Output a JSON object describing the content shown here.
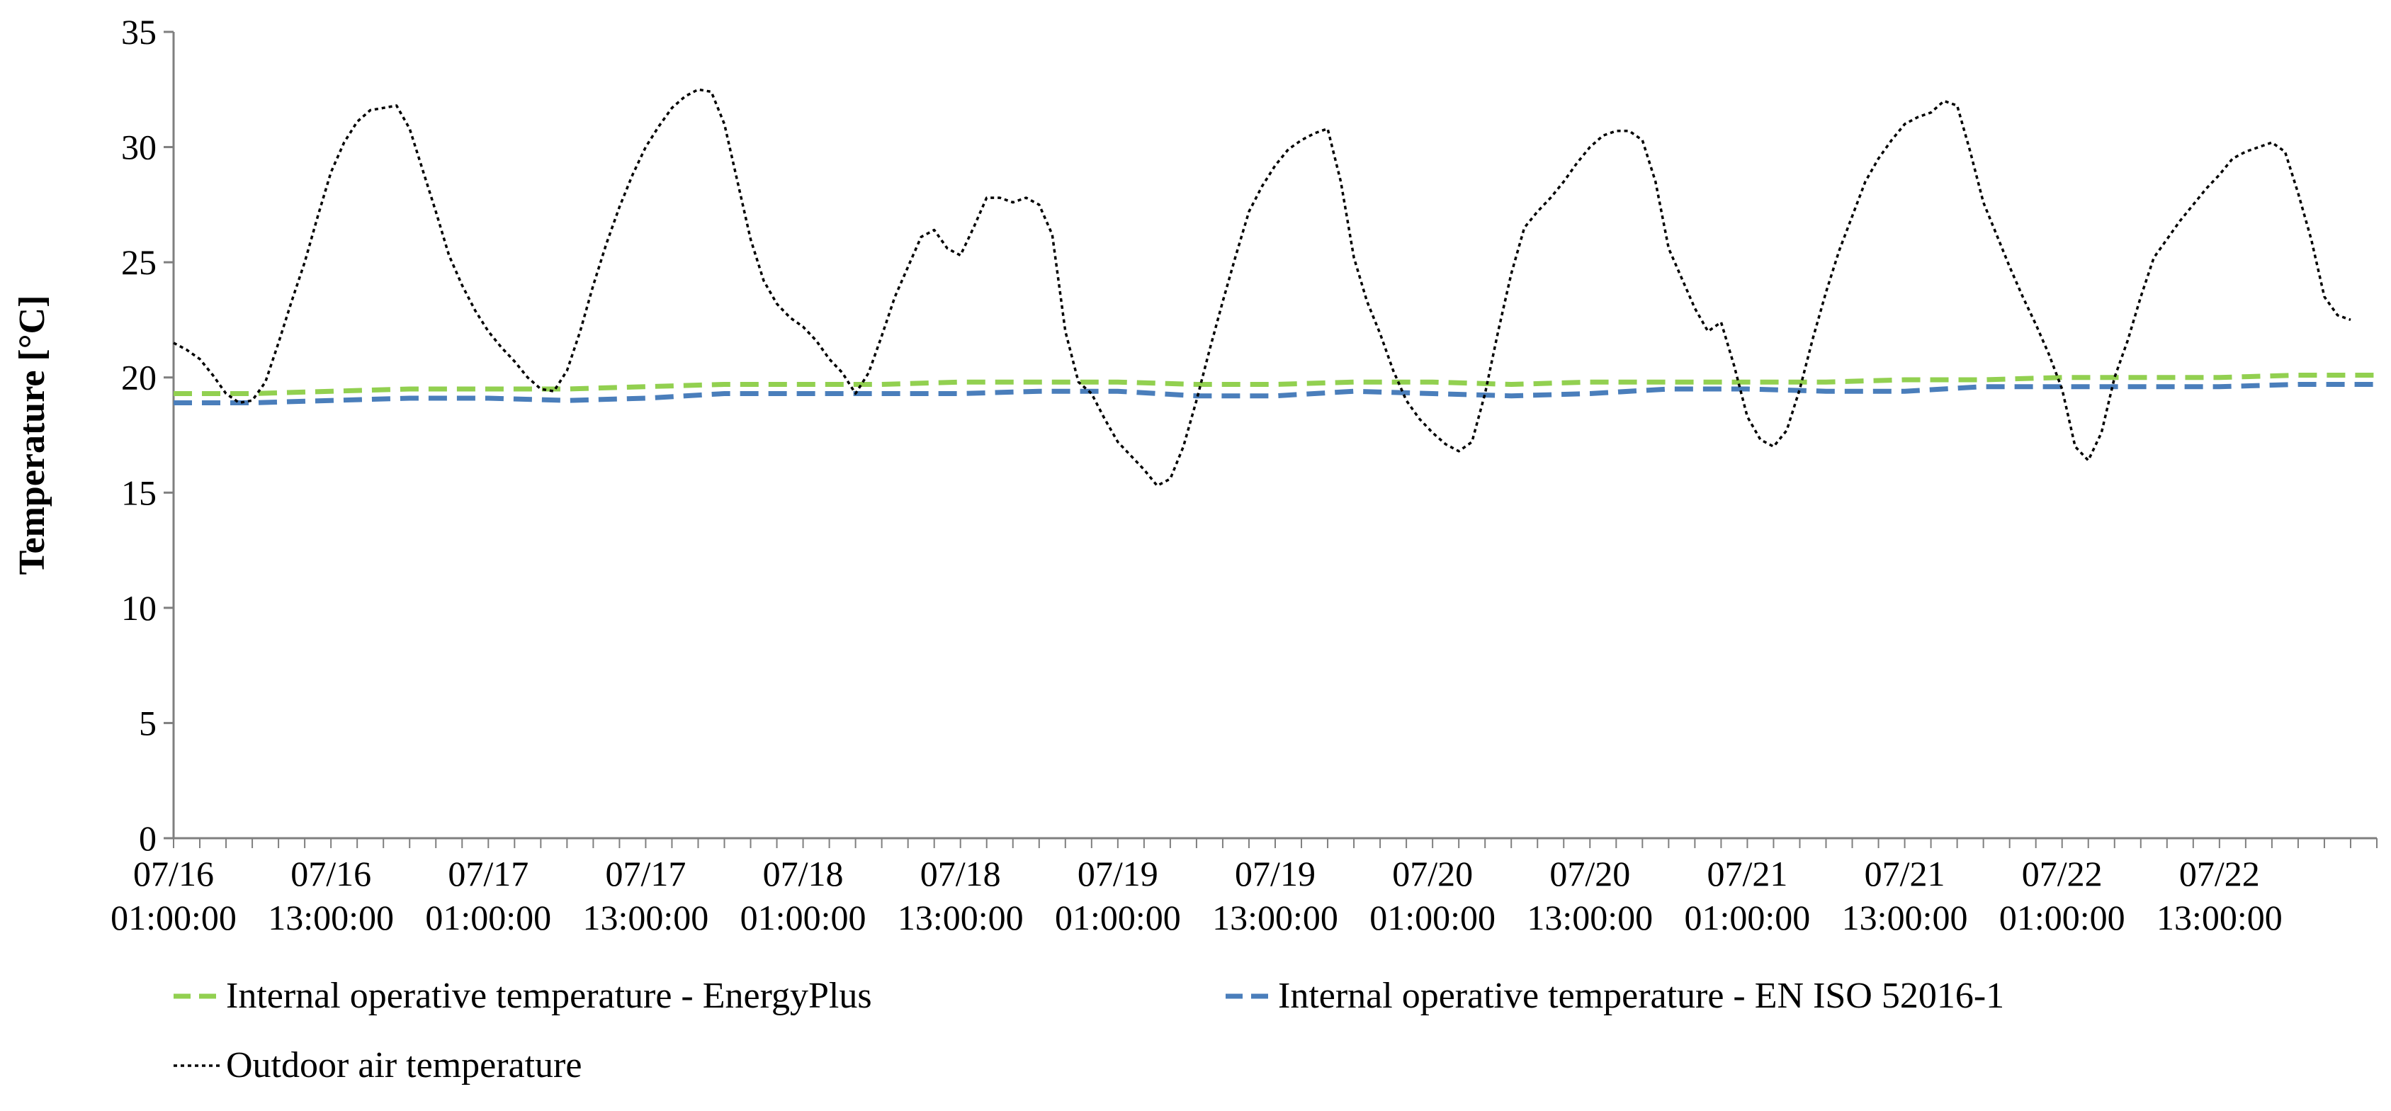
{
  "chart_data": {
    "type": "line",
    "title": "",
    "xlabel": "",
    "ylabel": "Temperature [°C]",
    "ylim": [
      0,
      35
    ],
    "yticks": [
      0,
      5,
      10,
      15,
      20,
      25,
      30,
      35
    ],
    "grid": false,
    "legend_position": "bottom",
    "x_unit": "hours since 07/16 01:00:00",
    "x_range": [
      0,
      168
    ],
    "x_tick_labels": [
      {
        "date": "07/16",
        "time": "01:00:00",
        "hour": 0
      },
      {
        "date": "07/16",
        "time": "13:00:00",
        "hour": 12
      },
      {
        "date": "07/17",
        "time": "01:00:00",
        "hour": 24
      },
      {
        "date": "07/17",
        "time": "13:00:00",
        "hour": 36
      },
      {
        "date": "07/18",
        "time": "01:00:00",
        "hour": 48
      },
      {
        "date": "07/18",
        "time": "13:00:00",
        "hour": 60
      },
      {
        "date": "07/19",
        "time": "01:00:00",
        "hour": 72
      },
      {
        "date": "07/19",
        "time": "13:00:00",
        "hour": 84
      },
      {
        "date": "07/20",
        "time": "01:00:00",
        "hour": 96
      },
      {
        "date": "07/20",
        "time": "13:00:00",
        "hour": 108
      },
      {
        "date": "07/21",
        "time": "01:00:00",
        "hour": 120
      },
      {
        "date": "07/21",
        "time": "13:00:00",
        "hour": 132
      },
      {
        "date": "07/22",
        "time": "01:00:00",
        "hour": 144
      },
      {
        "date": "07/22",
        "time": "13:00:00",
        "hour": 156
      }
    ],
    "series": [
      {
        "name": "Internal operative temperature - EnergyPlus",
        "color": "#92d050",
        "style": "dashed",
        "points": [
          [
            0,
            19.3
          ],
          [
            6,
            19.3
          ],
          [
            12,
            19.4
          ],
          [
            18,
            19.5
          ],
          [
            24,
            19.5
          ],
          [
            30,
            19.5
          ],
          [
            36,
            19.6
          ],
          [
            42,
            19.7
          ],
          [
            48,
            19.7
          ],
          [
            54,
            19.7
          ],
          [
            60,
            19.8
          ],
          [
            66,
            19.8
          ],
          [
            72,
            19.8
          ],
          [
            78,
            19.7
          ],
          [
            84,
            19.7
          ],
          [
            90,
            19.8
          ],
          [
            96,
            19.8
          ],
          [
            102,
            19.7
          ],
          [
            108,
            19.8
          ],
          [
            114,
            19.8
          ],
          [
            120,
            19.8
          ],
          [
            126,
            19.8
          ],
          [
            132,
            19.9
          ],
          [
            138,
            19.9
          ],
          [
            144,
            20.0
          ],
          [
            150,
            20.0
          ],
          [
            156,
            20.0
          ],
          [
            162,
            20.1
          ],
          [
            168,
            20.1
          ]
        ]
      },
      {
        "name": "Internal operative temperature - EN ISO 52016-1",
        "color": "#4a7ebb",
        "style": "dashed",
        "points": [
          [
            0,
            18.9
          ],
          [
            6,
            18.9
          ],
          [
            12,
            19.0
          ],
          [
            18,
            19.1
          ],
          [
            24,
            19.1
          ],
          [
            30,
            19.0
          ],
          [
            36,
            19.1
          ],
          [
            42,
            19.3
          ],
          [
            48,
            19.3
          ],
          [
            54,
            19.3
          ],
          [
            60,
            19.3
          ],
          [
            66,
            19.4
          ],
          [
            72,
            19.4
          ],
          [
            78,
            19.2
          ],
          [
            84,
            19.2
          ],
          [
            90,
            19.4
          ],
          [
            96,
            19.3
          ],
          [
            102,
            19.2
          ],
          [
            108,
            19.3
          ],
          [
            114,
            19.5
          ],
          [
            120,
            19.5
          ],
          [
            126,
            19.4
          ],
          [
            132,
            19.4
          ],
          [
            138,
            19.6
          ],
          [
            144,
            19.6
          ],
          [
            150,
            19.6
          ],
          [
            156,
            19.6
          ],
          [
            162,
            19.7
          ],
          [
            168,
            19.7
          ]
        ]
      },
      {
        "name": "Outdoor air temperature",
        "color": "#000000",
        "style": "dotted",
        "points": [
          [
            0,
            21.5
          ],
          [
            1,
            21.2
          ],
          [
            2,
            20.8
          ],
          [
            3,
            20.1
          ],
          [
            4,
            19.3
          ],
          [
            5,
            18.9
          ],
          [
            6,
            19.0
          ],
          [
            7,
            19.8
          ],
          [
            8,
            21.5
          ],
          [
            9,
            23.3
          ],
          [
            10,
            25.0
          ],
          [
            11,
            27.0
          ],
          [
            12,
            28.9
          ],
          [
            13,
            30.2
          ],
          [
            14,
            31.1
          ],
          [
            15,
            31.6
          ],
          [
            16,
            31.7
          ],
          [
            17,
            31.8
          ],
          [
            18,
            30.8
          ],
          [
            19,
            29.0
          ],
          [
            20,
            27.2
          ],
          [
            21,
            25.3
          ],
          [
            22,
            24.0
          ],
          [
            23,
            22.9
          ],
          [
            24,
            22.0
          ],
          [
            25,
            21.3
          ],
          [
            26,
            20.7
          ],
          [
            27,
            20.0
          ],
          [
            28,
            19.5
          ],
          [
            29,
            19.4
          ],
          [
            30,
            20.3
          ],
          [
            31,
            22.0
          ],
          [
            32,
            24.0
          ],
          [
            33,
            25.8
          ],
          [
            34,
            27.4
          ],
          [
            35,
            28.8
          ],
          [
            36,
            30.0
          ],
          [
            37,
            30.9
          ],
          [
            38,
            31.7
          ],
          [
            39,
            32.2
          ],
          [
            40,
            32.5
          ],
          [
            41,
            32.4
          ],
          [
            42,
            31.0
          ],
          [
            43,
            28.5
          ],
          [
            44,
            26.0
          ],
          [
            45,
            24.2
          ],
          [
            46,
            23.2
          ],
          [
            47,
            22.6
          ],
          [
            48,
            22.2
          ],
          [
            49,
            21.6
          ],
          [
            50,
            20.8
          ],
          [
            51,
            20.2
          ],
          [
            52,
            19.3
          ],
          [
            53,
            20.2
          ],
          [
            54,
            21.8
          ],
          [
            55,
            23.5
          ],
          [
            56,
            24.8
          ],
          [
            57,
            26.1
          ],
          [
            58,
            26.4
          ],
          [
            59,
            25.6
          ],
          [
            60,
            25.3
          ],
          [
            61,
            26.5
          ],
          [
            62,
            27.8
          ],
          [
            63,
            27.8
          ],
          [
            64,
            27.6
          ],
          [
            65,
            27.8
          ],
          [
            66,
            27.5
          ],
          [
            67,
            26.2
          ],
          [
            68,
            22.0
          ],
          [
            69,
            19.8
          ],
          [
            70,
            19.3
          ],
          [
            71,
            18.2
          ],
          [
            72,
            17.2
          ],
          [
            73,
            16.6
          ],
          [
            74,
            16.0
          ],
          [
            75,
            15.3
          ],
          [
            76,
            15.6
          ],
          [
            77,
            17.0
          ],
          [
            78,
            19.0
          ],
          [
            79,
            21.2
          ],
          [
            80,
            23.3
          ],
          [
            81,
            25.3
          ],
          [
            82,
            27.2
          ],
          [
            83,
            28.3
          ],
          [
            84,
            29.2
          ],
          [
            85,
            29.9
          ],
          [
            86,
            30.3
          ],
          [
            87,
            30.6
          ],
          [
            88,
            30.8
          ],
          [
            89,
            28.5
          ],
          [
            90,
            25.2
          ],
          [
            91,
            23.3
          ],
          [
            92,
            21.9
          ],
          [
            93,
            20.3
          ],
          [
            94,
            19.0
          ],
          [
            95,
            18.2
          ],
          [
            96,
            17.6
          ],
          [
            97,
            17.1
          ],
          [
            98,
            16.8
          ],
          [
            99,
            17.2
          ],
          [
            100,
            19.3
          ],
          [
            101,
            22.0
          ],
          [
            102,
            24.5
          ],
          [
            103,
            26.5
          ],
          [
            104,
            27.2
          ],
          [
            105,
            27.8
          ],
          [
            106,
            28.5
          ],
          [
            107,
            29.3
          ],
          [
            108,
            30.0
          ],
          [
            109,
            30.5
          ],
          [
            110,
            30.7
          ],
          [
            111,
            30.7
          ],
          [
            112,
            30.3
          ],
          [
            113,
            28.5
          ],
          [
            114,
            25.6
          ],
          [
            115,
            24.3
          ],
          [
            116,
            23.0
          ],
          [
            117,
            22.0
          ],
          [
            118,
            22.4
          ],
          [
            119,
            20.5
          ],
          [
            120,
            18.3
          ],
          [
            121,
            17.3
          ],
          [
            122,
            17.0
          ],
          [
            123,
            17.7
          ],
          [
            124,
            19.5
          ],
          [
            125,
            21.7
          ],
          [
            126,
            23.7
          ],
          [
            127,
            25.5
          ],
          [
            128,
            27.0
          ],
          [
            129,
            28.5
          ],
          [
            130,
            29.5
          ],
          [
            131,
            30.3
          ],
          [
            132,
            31.0
          ],
          [
            133,
            31.3
          ],
          [
            134,
            31.5
          ],
          [
            135,
            32.0
          ],
          [
            136,
            31.8
          ],
          [
            137,
            29.8
          ],
          [
            138,
            27.6
          ],
          [
            139,
            26.2
          ],
          [
            140,
            24.8
          ],
          [
            141,
            23.5
          ],
          [
            142,
            22.3
          ],
          [
            143,
            21.0
          ],
          [
            144,
            19.5
          ],
          [
            145,
            17.0
          ],
          [
            146,
            16.4
          ],
          [
            147,
            17.6
          ],
          [
            148,
            20.0
          ],
          [
            149,
            21.6
          ],
          [
            150,
            23.5
          ],
          [
            151,
            25.2
          ],
          [
            152,
            26.0
          ],
          [
            153,
            26.8
          ],
          [
            154,
            27.5
          ],
          [
            155,
            28.2
          ],
          [
            156,
            28.8
          ],
          [
            157,
            29.5
          ],
          [
            158,
            29.8
          ],
          [
            159,
            30.0
          ],
          [
            160,
            30.2
          ],
          [
            161,
            29.8
          ],
          [
            162,
            28.0
          ],
          [
            163,
            26.0
          ],
          [
            164,
            23.5
          ],
          [
            165,
            22.7
          ],
          [
            166,
            22.5
          ]
        ]
      }
    ]
  }
}
